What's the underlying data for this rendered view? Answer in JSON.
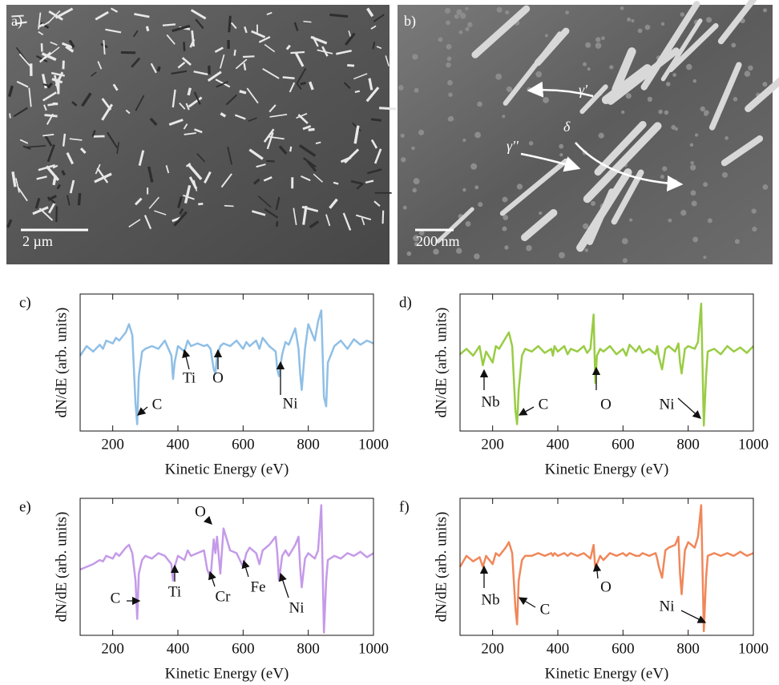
{
  "images": [
    {
      "label": "a)",
      "scale": "2 µm"
    },
    {
      "label": "b)",
      "scale": "200 nm",
      "annotations": [
        "γ'",
        "γ''",
        "δ"
      ]
    }
  ],
  "chart_data": [
    {
      "type": "line",
      "label": "c)",
      "xlabel": "Kinetic Energy (eV)",
      "ylabel": "dN/dE (arb. units)",
      "xlim": [
        100,
        1000
      ],
      "xticks": [
        200,
        400,
        600,
        800,
        1000
      ],
      "ylim": [
        0,
        100
      ],
      "x": [
        100,
        120,
        140,
        160,
        170,
        180,
        200,
        210,
        220,
        240,
        250,
        260,
        270,
        275,
        280,
        290,
        300,
        320,
        340,
        360,
        380,
        385,
        390,
        400,
        420,
        430,
        440,
        460,
        480,
        490,
        500,
        510,
        515,
        520,
        530,
        540,
        560,
        580,
        600,
        610,
        620,
        640,
        650,
        660,
        680,
        700,
        705,
        710,
        720,
        730,
        740,
        760,
        770,
        775,
        780,
        790,
        800,
        820,
        830,
        840,
        848,
        855,
        860,
        880,
        900,
        920,
        940,
        960,
        980,
        1000
      ],
      "series": [
        {
          "color": "#8fbfe6",
          "values": [
            55,
            62,
            58,
            63,
            60,
            66,
            64,
            68,
            66,
            72,
            78,
            70,
            20,
            5,
            40,
            58,
            60,
            62,
            60,
            66,
            55,
            38,
            50,
            62,
            58,
            66,
            62,
            64,
            62,
            63,
            60,
            45,
            42,
            55,
            62,
            64,
            62,
            66,
            60,
            65,
            62,
            66,
            60,
            68,
            62,
            58,
            45,
            40,
            56,
            65,
            63,
            75,
            60,
            42,
            30,
            60,
            78,
            66,
            80,
            88,
            25,
            18,
            50,
            62,
            66,
            60,
            67,
            63,
            66,
            64
          ]
        }
      ],
      "annotations": [
        "C",
        "Ti",
        "O",
        "Ni"
      ]
    },
    {
      "type": "line",
      "label": "d)",
      "xlabel": "Kinetic Energy (eV)",
      "ylabel": "dN/dE (arb. units)",
      "xlim": [
        100,
        1000
      ],
      "xticks": [
        200,
        400,
        600,
        800,
        1000
      ],
      "ylim": [
        0,
        100
      ],
      "x": [
        100,
        120,
        140,
        160,
        170,
        180,
        200,
        210,
        220,
        240,
        250,
        260,
        270,
        275,
        280,
        290,
        300,
        320,
        340,
        360,
        380,
        385,
        390,
        400,
        420,
        430,
        440,
        460,
        480,
        490,
        500,
        510,
        515,
        520,
        530,
        540,
        560,
        580,
        600,
        610,
        620,
        640,
        650,
        660,
        680,
        700,
        705,
        710,
        720,
        730,
        740,
        760,
        770,
        775,
        780,
        790,
        800,
        820,
        830,
        840,
        848,
        855,
        860,
        880,
        900,
        920,
        940,
        960,
        980,
        1000
      ],
      "series": [
        {
          "color": "#99cc44",
          "values": [
            56,
            60,
            55,
            62,
            48,
            58,
            50,
            62,
            60,
            68,
            72,
            62,
            15,
            5,
            30,
            55,
            60,
            58,
            62,
            57,
            60,
            55,
            62,
            58,
            62,
            56,
            60,
            58,
            62,
            57,
            60,
            85,
            35,
            55,
            60,
            58,
            62,
            56,
            60,
            55,
            63,
            58,
            62,
            57,
            60,
            56,
            62,
            54,
            45,
            60,
            62,
            58,
            64,
            50,
            42,
            60,
            62,
            60,
            65,
            93,
            4,
            40,
            58,
            60,
            56,
            62,
            58,
            61,
            57,
            62
          ]
        }
      ],
      "annotations": [
        "Nb",
        "C",
        "O",
        "Ni"
      ]
    },
    {
      "type": "line",
      "label": "e)",
      "xlabel": "Kinetic Energy (eV)",
      "ylabel": "dN/dE (arb. units)",
      "xlim": [
        100,
        1000
      ],
      "xticks": [
        200,
        400,
        600,
        800,
        1000
      ],
      "ylim": [
        0,
        100
      ],
      "x": [
        100,
        120,
        140,
        160,
        170,
        180,
        200,
        210,
        220,
        240,
        250,
        260,
        270,
        275,
        280,
        290,
        300,
        320,
        340,
        360,
        380,
        385,
        390,
        400,
        420,
        430,
        440,
        460,
        480,
        490,
        500,
        510,
        515,
        520,
        530,
        540,
        560,
        580,
        600,
        610,
        620,
        640,
        650,
        660,
        680,
        700,
        705,
        710,
        720,
        730,
        740,
        760,
        770,
        775,
        780,
        790,
        800,
        820,
        830,
        840,
        848,
        855,
        860,
        880,
        900,
        920,
        940,
        960,
        980,
        1000
      ],
      "series": [
        {
          "color": "#c59ae8",
          "values": [
            48,
            50,
            52,
            55,
            54,
            58,
            56,
            60,
            58,
            64,
            66,
            60,
            40,
            12,
            45,
            55,
            58,
            56,
            60,
            58,
            52,
            40,
            50,
            58,
            55,
            62,
            58,
            60,
            62,
            48,
            42,
            70,
            60,
            72,
            45,
            78,
            62,
            60,
            50,
            60,
            64,
            60,
            52,
            62,
            66,
            72,
            60,
            40,
            58,
            62,
            58,
            66,
            72,
            50,
            35,
            56,
            60,
            56,
            62,
            95,
            2,
            40,
            55,
            58,
            56,
            60,
            58,
            61,
            57,
            60
          ]
        }
      ],
      "annotations": [
        "O",
        "C",
        "Ti",
        "Cr",
        "Fe",
        "Ni"
      ]
    },
    {
      "type": "line",
      "label": "f)",
      "xlabel": "Kinetic Energy (eV)",
      "ylabel": "dN/dE (arb. units)",
      "xlim": [
        100,
        1000
      ],
      "xticks": [
        200,
        400,
        600,
        800,
        1000
      ],
      "ylim": [
        0,
        100
      ],
      "x": [
        100,
        120,
        140,
        160,
        170,
        180,
        200,
        210,
        220,
        240,
        250,
        260,
        270,
        275,
        280,
        290,
        300,
        320,
        340,
        360,
        380,
        385,
        390,
        400,
        420,
        430,
        440,
        460,
        480,
        490,
        500,
        510,
        515,
        520,
        530,
        540,
        560,
        580,
        600,
        610,
        620,
        640,
        650,
        660,
        680,
        700,
        705,
        710,
        720,
        730,
        740,
        760,
        770,
        775,
        780,
        790,
        800,
        820,
        830,
        840,
        848,
        855,
        860,
        880,
        900,
        920,
        940,
        960,
        980,
        1000
      ],
      "series": [
        {
          "color": "#f0875a",
          "values": [
            50,
            58,
            54,
            57,
            50,
            58,
            52,
            60,
            58,
            64,
            68,
            60,
            20,
            8,
            40,
            55,
            58,
            58,
            60,
            58,
            60,
            58,
            60,
            58,
            60,
            58,
            60,
            58,
            60,
            58,
            56,
            66,
            48,
            52,
            58,
            55,
            60,
            58,
            60,
            58,
            60,
            58,
            58,
            60,
            58,
            60,
            56,
            50,
            42,
            62,
            64,
            66,
            72,
            45,
            30,
            62,
            68,
            64,
            72,
            95,
            3,
            42,
            58,
            60,
            58,
            60,
            58,
            61,
            58,
            60
          ]
        }
      ],
      "annotations": [
        "Nb",
        "C",
        "O",
        "Ni"
      ]
    }
  ]
}
